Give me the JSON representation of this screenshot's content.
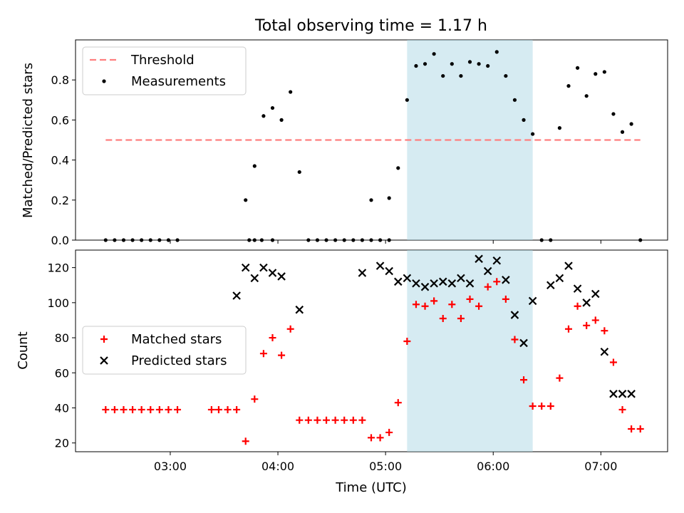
{
  "title": "Total observing time = 1.17 h",
  "colors": {
    "threshold": "#ff7f7f",
    "measurement": "#000000",
    "matched": "#ff0000",
    "predicted": "#000000",
    "highlight": "#add8e6"
  },
  "chart_data": [
    {
      "type": "scatter",
      "panel": "top",
      "ylabel": "Matched/Predicted stars",
      "xlim": [
        2.12,
        7.62
      ],
      "ylim": [
        0,
        1.0
      ],
      "y_ticks": [
        0.0,
        0.2,
        0.4,
        0.6,
        0.8
      ],
      "y_tick_labels": [
        "0.0",
        "0.2",
        "0.4",
        "0.6",
        "0.8"
      ],
      "highlight_span": [
        "05:12",
        "06:22"
      ],
      "legend": {
        "position": "upper-left",
        "entries": [
          "Threshold",
          "Measurements"
        ]
      },
      "series": [
        {
          "name": "Threshold",
          "type": "line",
          "style": "dashed",
          "x": [
            "02:24",
            "07:22"
          ],
          "y": [
            0.5,
            0.5
          ]
        },
        {
          "name": "Measurements",
          "type": "scatter",
          "marker": "dot",
          "x": [
            "02:24",
            "02:29",
            "02:34",
            "02:39",
            "02:44",
            "02:49",
            "02:54",
            "02:59",
            "03:04",
            "03:44",
            "03:47",
            "03:51",
            "03:57",
            "03:42",
            "03:47",
            "03:52",
            "03:57",
            "04:02",
            "04:07",
            "04:12",
            "04:17",
            "04:22",
            "04:27",
            "04:32",
            "04:37",
            "04:42",
            "04:47",
            "04:52",
            "04:57",
            "05:02",
            "04:52",
            "05:02",
            "05:07",
            "05:12",
            "05:17",
            "05:22",
            "05:27",
            "05:32",
            "05:37",
            "05:42",
            "05:47",
            "05:52",
            "05:57",
            "06:02",
            "06:07",
            "06:12",
            "06:17",
            "06:22",
            "06:27",
            "06:32",
            "06:37",
            "06:42",
            "06:47",
            "06:52",
            "06:57",
            "07:02",
            "07:07",
            "07:12",
            "07:17",
            "07:22"
          ],
          "y": [
            0,
            0,
            0,
            0,
            0,
            0,
            0,
            0,
            0,
            0,
            0,
            0,
            0,
            0.2,
            0.37,
            0.62,
            0.66,
            0.6,
            0.74,
            0.34,
            0,
            0,
            0,
            0,
            0,
            0,
            0,
            0,
            0,
            0,
            0.2,
            0.21,
            0.36,
            0.7,
            0.87,
            0.88,
            0.93,
            0.82,
            0.88,
            0.82,
            0.89,
            0.88,
            0.87,
            0.94,
            0.82,
            0.7,
            0.6,
            0.53,
            0,
            0,
            0.56,
            0.77,
            0.86,
            0.72,
            0.83,
            0.84,
            0.63,
            0.54,
            0.58,
            0
          ]
        }
      ]
    },
    {
      "type": "scatter",
      "panel": "bottom",
      "xlabel": "Time (UTC)",
      "ylabel": "Count",
      "xlim": [
        2.12,
        7.62
      ],
      "ylim": [
        15,
        130
      ],
      "x_ticks": [
        "03:00",
        "04:00",
        "05:00",
        "06:00",
        "07:00"
      ],
      "y_ticks": [
        20,
        40,
        60,
        80,
        100,
        120
      ],
      "highlight_span": [
        "05:12",
        "06:22"
      ],
      "legend": {
        "position": "center-left",
        "entries": [
          "Matched stars",
          "Predicted stars"
        ]
      },
      "series": [
        {
          "name": "Matched stars",
          "marker": "plus",
          "x": [
            "02:24",
            "02:29",
            "02:34",
            "02:39",
            "02:44",
            "02:49",
            "02:54",
            "02:59",
            "03:04",
            "03:27",
            "03:32",
            "03:37",
            "03:42",
            "03:47",
            "03:52",
            "03:57",
            "04:02",
            "04:07",
            "04:12",
            "04:17",
            "04:22",
            "04:27",
            "04:32",
            "04:37",
            "04:42",
            "04:47",
            "04:52",
            "04:57",
            "05:02",
            "05:07",
            "05:12",
            "05:17",
            "05:22",
            "05:27",
            "05:32",
            "05:37",
            "05:42",
            "05:47",
            "05:52",
            "05:57",
            "06:02",
            "06:07",
            "06:12",
            "06:17",
            "06:22",
            "06:27",
            "06:32",
            "06:37",
            "06:42",
            "06:47",
            "06:52",
            "06:57",
            "07:02",
            "07:07",
            "07:12",
            "07:17",
            "07:22",
            "03:23"
          ],
          "y": [
            39,
            39,
            39,
            39,
            39,
            39,
            39,
            39,
            39,
            39,
            39,
            39,
            21,
            45,
            71,
            80,
            70,
            85,
            33,
            33,
            33,
            33,
            33,
            33,
            33,
            33,
            23,
            23,
            26,
            43,
            78,
            99,
            98,
            101,
            91,
            99,
            91,
            102,
            98,
            109,
            112,
            102,
            79,
            56,
            41,
            41,
            41,
            57,
            85,
            98,
            87,
            90,
            84,
            66,
            39,
            28,
            28,
            39
          ]
        },
        {
          "name": "Predicted stars",
          "marker": "x",
          "x": [
            "03:37",
            "03:42",
            "03:47",
            "03:52",
            "03:57",
            "04:02",
            "04:12",
            "04:47",
            "04:57",
            "05:02",
            "05:07",
            "05:12",
            "05:17",
            "05:22",
            "05:27",
            "05:32",
            "05:37",
            "05:42",
            "05:47",
            "05:52",
            "05:57",
            "06:02",
            "06:07",
            "06:12",
            "06:17",
            "06:22",
            "06:32",
            "06:37",
            "06:42",
            "06:47",
            "06:52",
            "06:57",
            "07:02",
            "07:07",
            "07:12",
            "07:17"
          ],
          "y": [
            104,
            120,
            114,
            120,
            117,
            115,
            96,
            117,
            121,
            118,
            112,
            114,
            111,
            109,
            111,
            112,
            111,
            114,
            111,
            125,
            118,
            124,
            113,
            93,
            77,
            101,
            110,
            114,
            121,
            108,
            100,
            105,
            72,
            48,
            48,
            48
          ]
        }
      ]
    }
  ]
}
